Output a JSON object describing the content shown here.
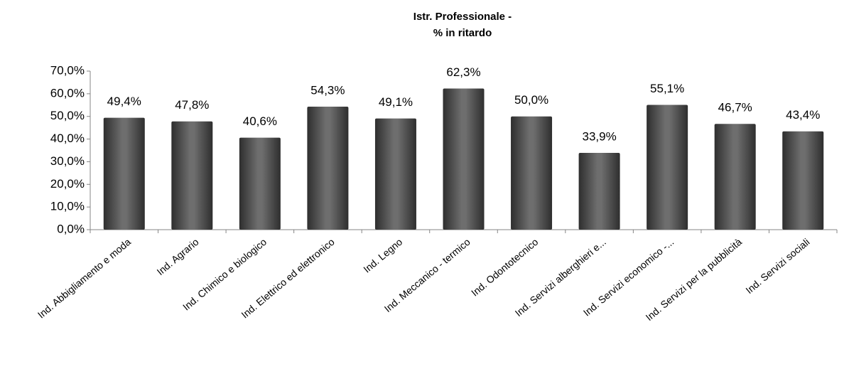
{
  "chart_data": {
    "type": "bar",
    "title": [
      "Istr. Professionale -",
      "% in ritardo"
    ],
    "categories": [
      "Ind. Abbigliamento e moda",
      "Ind. Agrario",
      "Ind. Chimico e biologico",
      "Ind. Elettrico ed elettronico",
      "Ind. Legno",
      "Ind. Meccanico - termico",
      "Ind. Odontotecnico",
      "Ind. Servizi alberghieri e...",
      "Ind. Servizi economico -...",
      "Ind. Servizi per la pubblicità",
      "Ind. Servizi sociali"
    ],
    "values": [
      49.4,
      47.8,
      40.6,
      54.3,
      49.1,
      62.3,
      50.0,
      33.9,
      55.1,
      46.7,
      43.4
    ],
    "value_labels": [
      "49,4%",
      "47,8%",
      "40,6%",
      "54,3%",
      "49,1%",
      "62,3%",
      "50,0%",
      "33,9%",
      "55,1%",
      "46,7%",
      "43,4%"
    ],
    "color": "#6e6e6e",
    "ylim": [
      0,
      70
    ],
    "yticks": [
      {
        "value": 0,
        "label": "0,0%"
      },
      {
        "value": 10,
        "label": "10,0%"
      },
      {
        "value": 20,
        "label": "20,0%"
      },
      {
        "value": 30,
        "label": "30,0%"
      },
      {
        "value": 40,
        "label": "40,0%"
      },
      {
        "value": 50,
        "label": "50,0%"
      },
      {
        "value": 60,
        "label": "60,0%"
      },
      {
        "value": 70,
        "label": "70,0%"
      }
    ],
    "grid": false
  }
}
